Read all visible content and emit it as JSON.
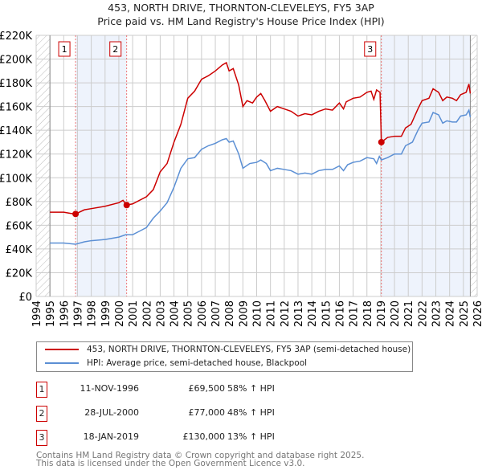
{
  "chart_data": {
    "type": "line",
    "title": "453, NORTH DRIVE, THORNTON-CLEVELEYS, FY5 3AP",
    "subtitle": "Price paid vs. HM Land Registry's House Price Index (HPI)",
    "xlim": [
      1994,
      2026
    ],
    "ylim": [
      0,
      220000
    ],
    "yticks": [
      0,
      20000,
      40000,
      60000,
      80000,
      100000,
      120000,
      140000,
      160000,
      180000,
      200000,
      220000
    ],
    "ytick_labels": [
      "£0",
      "£20K",
      "£40K",
      "£60K",
      "£80K",
      "£100K",
      "£120K",
      "£140K",
      "£160K",
      "£180K",
      "£200K",
      "£220K"
    ],
    "xticks": [
      "1994",
      "1995",
      "1996",
      "1997",
      "1998",
      "1999",
      "2000",
      "2001",
      "2002",
      "2003",
      "2004",
      "2005",
      "2006",
      "2007",
      "2008",
      "2009",
      "2010",
      "2011",
      "2012",
      "2013",
      "2014",
      "2015",
      "2016",
      "2017",
      "2018",
      "2019",
      "2020",
      "2021",
      "2022",
      "2023",
      "2024",
      "2025",
      "2026"
    ],
    "grid": true,
    "series": [
      {
        "name": "453, NORTH DRIVE, THORNTON-CLEVELEYS, FY5 3AP (semi-detached house)",
        "color": "#cc0000",
        "x": [
          1995,
          1996,
          1996.5,
          1996.86,
          1997.5,
          1998,
          1999,
          2000,
          2000.3,
          2000.57,
          2001,
          2002,
          2002.5,
          2003,
          2003.5,
          2004,
          2004.5,
          2005,
          2005.5,
          2006,
          2006.5,
          2007,
          2007.5,
          2007.8,
          2008,
          2008.3,
          2008.7,
          2009,
          2009.3,
          2009.7,
          2010,
          2010.3,
          2010.6,
          2011,
          2011.5,
          2012,
          2012.5,
          2013,
          2013.5,
          2014,
          2014.5,
          2015,
          2015.5,
          2016,
          2016.3,
          2016.5,
          2017,
          2017.5,
          2018,
          2018.3,
          2018.5,
          2018.7,
          2018.95,
          2019.05,
          2019.5,
          2020,
          2020.5,
          2020.8,
          2021.2,
          2021.7,
          2022,
          2022.5,
          2022.8,
          2023.2,
          2023.5,
          2023.8,
          2024.2,
          2024.5,
          2024.8,
          2025.2,
          2025.4,
          2025.5
        ],
        "y": [
          71,
          71,
          70,
          69.5,
          73,
          74,
          76,
          79,
          81,
          77,
          78,
          84,
          90,
          105,
          112,
          130,
          145,
          167,
          173,
          183,
          186,
          190,
          195,
          197,
          190,
          192,
          178,
          160,
          165,
          163,
          168,
          171,
          165,
          156,
          160,
          158,
          156,
          152,
          154,
          153,
          156,
          158,
          157,
          163,
          158,
          164,
          167,
          168,
          172,
          173,
          166,
          174,
          172,
          130,
          134,
          135,
          135,
          142,
          145,
          158,
          165,
          167,
          175,
          172,
          165,
          168,
          167,
          165,
          170,
          172,
          179,
          171
        ]
      },
      {
        "name": "HPI: Average price, semi-detached house, Blackpool",
        "color": "#5b8fd4",
        "x": [
          1995,
          1996,
          1996.86,
          1997.5,
          1998,
          1999,
          2000,
          2000.5,
          2001,
          2001.5,
          2002,
          2002.5,
          2003,
          2003.5,
          2004,
          2004.5,
          2005,
          2005.5,
          2006,
          2006.5,
          2007,
          2007.5,
          2007.8,
          2008,
          2008.3,
          2008.7,
          2009,
          2009.5,
          2010,
          2010.3,
          2010.7,
          2011,
          2011.5,
          2012,
          2012.5,
          2013,
          2013.5,
          2014,
          2014.5,
          2015,
          2015.5,
          2016,
          2016.3,
          2016.6,
          2017,
          2017.5,
          2018,
          2018.5,
          2018.7,
          2018.9,
          2019.05,
          2019.5,
          2020,
          2020.5,
          2020.8,
          2021.3,
          2021.7,
          2022,
          2022.5,
          2022.8,
          2023.2,
          2023.5,
          2023.8,
          2024.2,
          2024.5,
          2024.8,
          2025.2,
          2025.4,
          2025.5
        ],
        "y": [
          45,
          45,
          44,
          46,
          47,
          48,
          50,
          52,
          52,
          55,
          58,
          66,
          72,
          79,
          92,
          108,
          116,
          117,
          124,
          127,
          129,
          132,
          133,
          130,
          131,
          120,
          108,
          112,
          113,
          115,
          112,
          106,
          108,
          107,
          106,
          103,
          104,
          103,
          106,
          107,
          107,
          110,
          106,
          111,
          113,
          114,
          117,
          116,
          112,
          118,
          115,
          117,
          120,
          120,
          127,
          130,
          140,
          146,
          147,
          155,
          153,
          146,
          148,
          147,
          147,
          152,
          153,
          157,
          151
        ]
      }
    ],
    "y_units": "thousands GBP",
    "sales": [
      {
        "label": "1",
        "x": 1996.86,
        "date": "11-NOV-1996",
        "price": "£69,500",
        "value": 69.5,
        "hpi": "58% ↑ HPI"
      },
      {
        "label": "2",
        "x": 2000.57,
        "date": "28-JUL-2000",
        "price": "£77,000",
        "value": 77,
        "hpi": "48% ↑ HPI"
      },
      {
        "label": "3",
        "x": 2019.05,
        "date": "18-JAN-2019",
        "price": "£130,000",
        "value": 130,
        "hpi": "13% ↑ HPI"
      }
    ],
    "data_end": 2025.5
  },
  "legend": {
    "red": "453, NORTH DRIVE, THORNTON-CLEVELEYS, FY5 3AP (semi-detached house)",
    "blue": "HPI: Average price, semi-detached house, Blackpool"
  },
  "footer": {
    "line1": "Contains HM Land Registry data © Crown copyright and database right 2025.",
    "line2": "This data is licensed under the Open Government Licence v3.0."
  }
}
